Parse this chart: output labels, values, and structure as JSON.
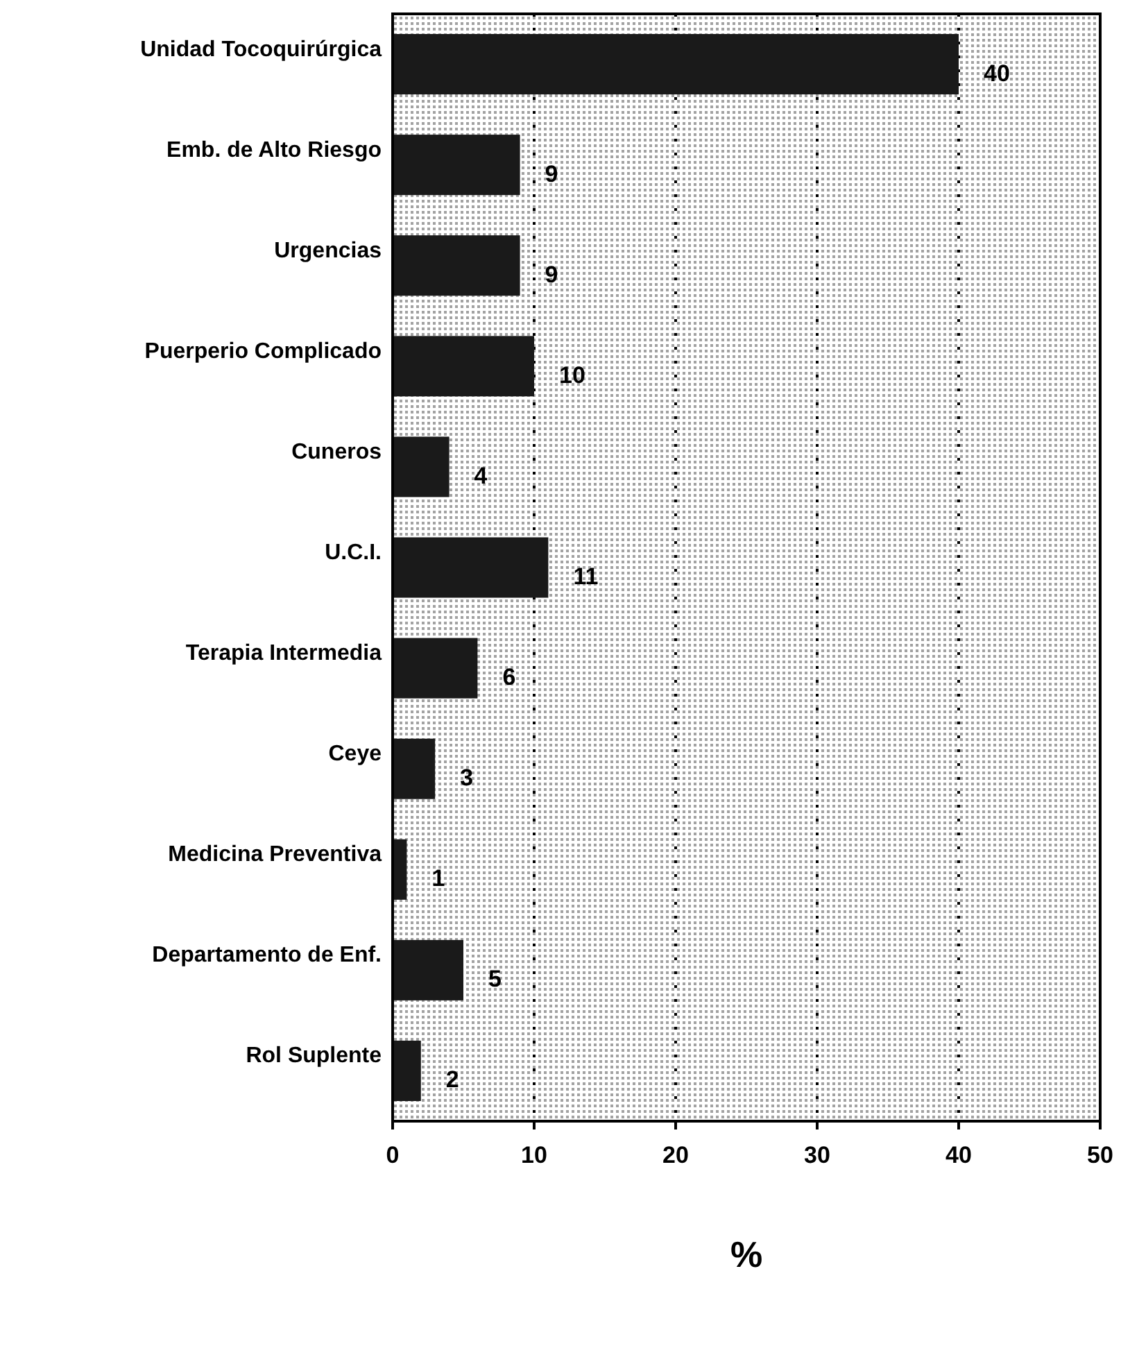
{
  "chart_data": {
    "type": "bar",
    "orientation": "horizontal",
    "xlabel": "%",
    "categories": [
      "Unidad Tocoquirúrgica",
      "Emb. de Alto Riesgo",
      "Urgencias",
      "Puerperio Complicado",
      "Cuneros",
      "U.C.I.",
      "Terapia Intermedia",
      "Ceye",
      "Medicina Preventiva",
      "Departamento de Enf.",
      "Rol Suplente"
    ],
    "values": [
      40,
      9,
      9,
      10,
      4,
      11,
      6,
      3,
      1,
      5,
      2
    ],
    "color": "#1a1a1a",
    "xlim": [
      0,
      50
    ],
    "xticks": [
      0,
      10,
      20,
      30,
      40,
      50
    ],
    "grid": "x",
    "data_labels": true
  }
}
